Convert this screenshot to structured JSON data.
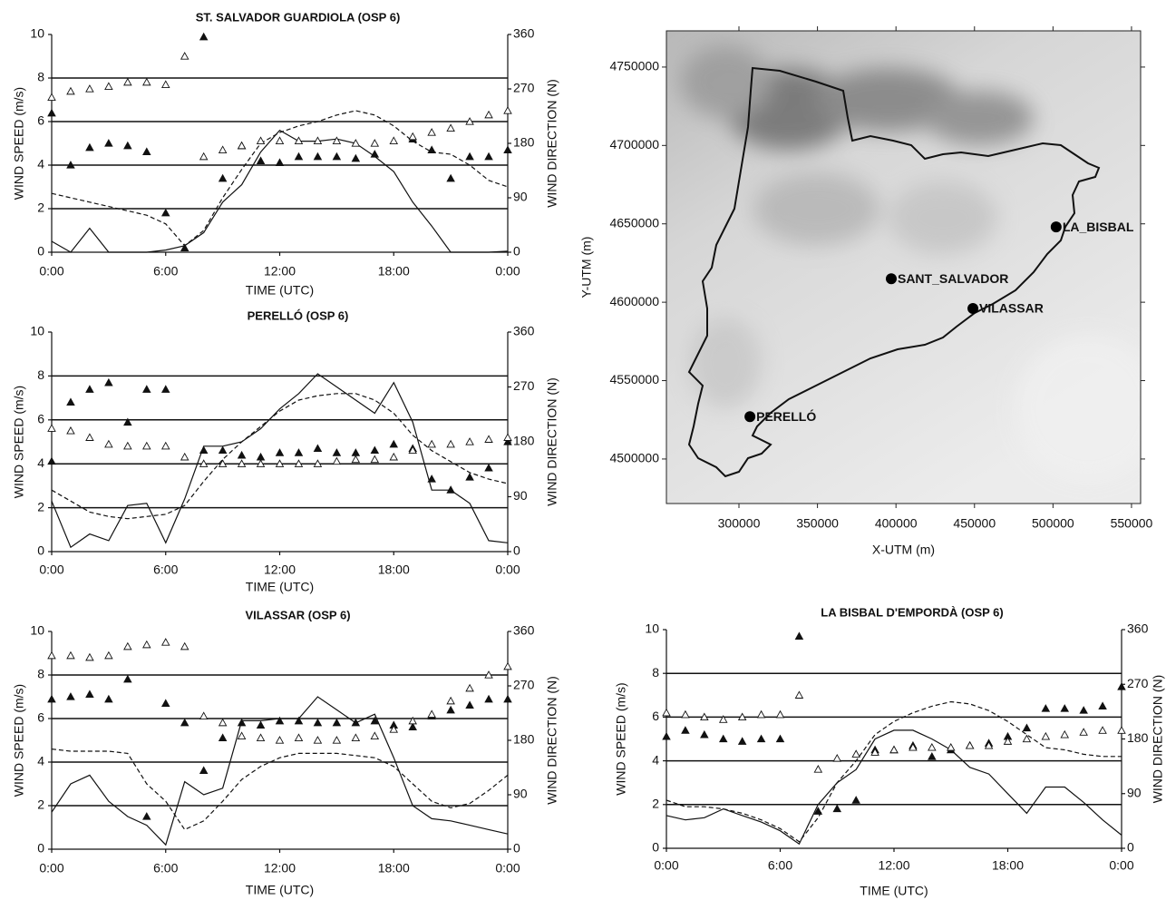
{
  "chart_data": [
    {
      "type": "line",
      "title": "ST. SALVADOR GUARDIOLA (OSP 6)",
      "xlabel": "TIME (UTC)",
      "ylabel": "WIND SPEED (m/s)",
      "y2label": "WIND DIRECTION (N)",
      "x": [
        0,
        1,
        2,
        3,
        4,
        5,
        6,
        7,
        8,
        9,
        10,
        11,
        12,
        13,
        14,
        15,
        16,
        17,
        18,
        19,
        20,
        21,
        22,
        23,
        24
      ],
      "xlim": [
        0,
        24
      ],
      "xticks": [
        {
          "value": 0,
          "label": "0:00"
        },
        {
          "value": 6,
          "label": "6:00"
        },
        {
          "value": 12,
          "label": "12:00"
        },
        {
          "value": 18,
          "label": "18:00"
        },
        {
          "value": 24,
          "label": "0:00"
        }
      ],
      "ylim": [
        0,
        10
      ],
      "yticks": [
        0,
        2,
        4,
        6,
        8,
        10
      ],
      "y2lim": [
        0,
        360
      ],
      "y2ticks": [
        0,
        90,
        180,
        270,
        360
      ],
      "grid": true,
      "series": [
        {
          "style": "solid",
          "color": "#111111",
          "axis": "y",
          "values": [
            0.5,
            0,
            1.1,
            0,
            0,
            0,
            0.1,
            0.3,
            0.9,
            2.3,
            3.1,
            4.6,
            5.6,
            5.1,
            5.1,
            5.2,
            5.0,
            4.4,
            3.7,
            2.3,
            1.2,
            0,
            0,
            0,
            0.05
          ]
        },
        {
          "style": "dashed",
          "color": "#111111",
          "axis": "y",
          "values": [
            2.7,
            2.5,
            2.3,
            2.1,
            1.9,
            1.7,
            1.3,
            0.3,
            1.0,
            2.5,
            3.8,
            5.0,
            5.5,
            5.8,
            6.0,
            6.3,
            6.5,
            6.3,
            5.8,
            5.1,
            4.6,
            4.5,
            4.0,
            3.3,
            3.0
          ]
        },
        {
          "style": "filled-triangle",
          "color": "#111111",
          "axis": "y2",
          "values": [
            230,
            144,
            173,
            180,
            176,
            166,
            65,
            7,
            356,
            122,
            176,
            151,
            148,
            158,
            158,
            158,
            155,
            162,
            null,
            187,
            169,
            122,
            158,
            158,
            169
          ]
        },
        {
          "style": "open-triangle",
          "color": "#111111",
          "axis": "y2",
          "values": [
            256,
            266,
            270,
            274,
            281,
            281,
            277,
            324,
            158,
            169,
            176,
            184,
            184,
            184,
            184,
            184,
            180,
            180,
            184,
            191,
            198,
            205,
            216,
            227,
            234
          ]
        }
      ]
    },
    {
      "type": "line",
      "title": "PERELLÓ (OSP 6)",
      "xlabel": "TIME (UTC)",
      "ylabel": "WIND SPEED (m/s)",
      "y2label": "WIND DIRECTION (N)",
      "x": [
        0,
        1,
        2,
        3,
        4,
        5,
        6,
        7,
        8,
        9,
        10,
        11,
        12,
        13,
        14,
        15,
        16,
        17,
        18,
        19,
        20,
        21,
        22,
        23,
        24
      ],
      "xlim": [
        0,
        24
      ],
      "xticks": [
        {
          "value": 0,
          "label": "0:00"
        },
        {
          "value": 6,
          "label": "6:00"
        },
        {
          "value": 12,
          "label": "12:00"
        },
        {
          "value": 18,
          "label": "18:00"
        },
        {
          "value": 24,
          "label": "0:00"
        }
      ],
      "ylim": [
        0,
        10
      ],
      "yticks": [
        0,
        2,
        4,
        6,
        8,
        10
      ],
      "y2lim": [
        0,
        360
      ],
      "y2ticks": [
        0,
        90,
        180,
        270,
        360
      ],
      "grid": true,
      "series": [
        {
          "style": "solid",
          "color": "#111111",
          "axis": "y",
          "values": [
            2.3,
            0.2,
            0.8,
            0.5,
            2.1,
            2.2,
            0.4,
            2.4,
            4.8,
            4.8,
            5.0,
            5.6,
            6.5,
            7.2,
            8.1,
            7.5,
            6.9,
            6.3,
            7.7,
            5.9,
            2.8,
            2.8,
            2.2,
            0.5,
            0.4
          ]
        },
        {
          "style": "dashed",
          "color": "#111111",
          "axis": "y",
          "values": [
            2.8,
            2.3,
            1.8,
            1.6,
            1.5,
            1.6,
            1.7,
            2.1,
            3.2,
            4.2,
            5.0,
            5.7,
            6.4,
            6.9,
            7.1,
            7.2,
            7.2,
            6.9,
            6.3,
            5.3,
            4.6,
            4.1,
            3.6,
            3.3,
            3.1
          ]
        },
        {
          "style": "filled-triangle",
          "color": "#111111",
          "axis": "y2",
          "values": [
            148,
            245,
            266,
            277,
            212,
            266,
            266,
            null,
            166,
            166,
            158,
            155,
            162,
            162,
            169,
            162,
            162,
            166,
            176,
            169,
            119,
            101,
            122,
            137,
            180
          ]
        },
        {
          "style": "open-triangle",
          "color": "#111111",
          "axis": "y2",
          "values": [
            202,
            198,
            187,
            176,
            173,
            173,
            173,
            155,
            144,
            144,
            144,
            144,
            144,
            144,
            144,
            148,
            151,
            151,
            155,
            166,
            176,
            176,
            180,
            184,
            187
          ]
        }
      ]
    },
    {
      "type": "line",
      "title": "VILASSAR (OSP 6)",
      "xlabel": "TIME (UTC)",
      "ylabel": "WIND SPEED (m/s)",
      "y2label": "WIND DIRECTION (N)",
      "x": [
        0,
        1,
        2,
        3,
        4,
        5,
        6,
        7,
        8,
        9,
        10,
        11,
        12,
        13,
        14,
        15,
        16,
        17,
        18,
        19,
        20,
        21,
        22,
        23,
        24
      ],
      "xlim": [
        0,
        24
      ],
      "xticks": [
        {
          "value": 0,
          "label": "0:00"
        },
        {
          "value": 6,
          "label": "6:00"
        },
        {
          "value": 12,
          "label": "12:00"
        },
        {
          "value": 18,
          "label": "18:00"
        },
        {
          "value": 24,
          "label": "0:00"
        }
      ],
      "ylim": [
        0,
        10
      ],
      "yticks": [
        0,
        2,
        4,
        6,
        8,
        10
      ],
      "y2lim": [
        0,
        360
      ],
      "y2ticks": [
        0,
        90,
        180,
        270,
        360
      ],
      "grid": true,
      "series": [
        {
          "style": "solid",
          "color": "#111111",
          "axis": "y",
          "values": [
            1.7,
            3.0,
            3.4,
            2.2,
            1.5,
            1.1,
            0.2,
            3.1,
            2.5,
            2.8,
            5.9,
            5.9,
            6.0,
            6.0,
            7.0,
            6.4,
            5.8,
            6.2,
            4.2,
            2.0,
            1.4,
            1.3,
            1.1,
            0.9,
            0.7
          ]
        },
        {
          "style": "dashed",
          "color": "#111111",
          "axis": "y",
          "values": [
            4.6,
            4.5,
            4.5,
            4.5,
            4.4,
            3.0,
            2.2,
            0.9,
            1.3,
            2.2,
            3.2,
            3.8,
            4.2,
            4.4,
            4.4,
            4.4,
            4.3,
            4.2,
            3.8,
            3.0,
            2.2,
            1.9,
            2.1,
            2.7,
            3.4
          ]
        },
        {
          "style": "filled-triangle",
          "color": "#111111",
          "axis": "y2",
          "values": [
            248,
            252,
            256,
            248,
            281,
            54,
            241,
            209,
            130,
            184,
            209,
            205,
            212,
            212,
            209,
            209,
            209,
            212,
            205,
            202,
            220,
            230,
            238,
            248,
            248
          ]
        },
        {
          "style": "open-triangle",
          "color": "#111111",
          "axis": "y2",
          "values": [
            320,
            320,
            317,
            320,
            335,
            338,
            342,
            335,
            220,
            209,
            187,
            184,
            180,
            184,
            180,
            180,
            184,
            187,
            198,
            212,
            223,
            245,
            266,
            288,
            302
          ]
        }
      ]
    },
    {
      "type": "line",
      "title": "LA BISBAL D'EMPORDÀ (OSP 6)",
      "xlabel": "TIME (UTC)",
      "ylabel": "WIND SPEED (m/s)",
      "y2label": "WIND DIRECTION (N)",
      "x": [
        0,
        1,
        2,
        3,
        4,
        5,
        6,
        7,
        8,
        9,
        10,
        11,
        12,
        13,
        14,
        15,
        16,
        17,
        18,
        19,
        20,
        21,
        22,
        23,
        24
      ],
      "xlim": [
        0,
        24
      ],
      "xticks": [
        {
          "value": 0,
          "label": "0:00"
        },
        {
          "value": 6,
          "label": "6:00"
        },
        {
          "value": 12,
          "label": "12:00"
        },
        {
          "value": 18,
          "label": "18:00"
        },
        {
          "value": 24,
          "label": "0:00"
        }
      ],
      "ylim": [
        0,
        10
      ],
      "yticks": [
        0,
        2,
        4,
        6,
        8,
        10
      ],
      "y2lim": [
        0,
        360
      ],
      "y2ticks": [
        0,
        90,
        180,
        270,
        360
      ],
      "grid": true,
      "series": [
        {
          "style": "solid",
          "color": "#111111",
          "axis": "y",
          "values": [
            1.5,
            1.3,
            1.4,
            1.8,
            1.5,
            1.2,
            0.8,
            0.2,
            2.0,
            3.0,
            3.6,
            5.0,
            5.4,
            5.4,
            5.0,
            4.5,
            3.7,
            3.4,
            2.5,
            1.6,
            2.8,
            2.8,
            2.1,
            1.3,
            0.6
          ]
        },
        {
          "style": "dashed",
          "color": "#111111",
          "axis": "y",
          "values": [
            2.2,
            1.9,
            1.9,
            1.8,
            1.6,
            1.3,
            0.9,
            0.3,
            1.4,
            3.0,
            4.0,
            5.2,
            5.8,
            6.2,
            6.5,
            6.7,
            6.6,
            6.3,
            5.8,
            5.2,
            4.6,
            4.5,
            4.3,
            4.2,
            4.2
          ]
        },
        {
          "style": "filled-triangle",
          "color": "#111111",
          "axis": "y2",
          "values": [
            184,
            194,
            187,
            180,
            176,
            180,
            180,
            349,
            61,
            65,
            79,
            162,
            162,
            169,
            151,
            162,
            169,
            173,
            184,
            198,
            230,
            230,
            227,
            234,
            266
          ]
        },
        {
          "style": "open-triangle",
          "color": "#111111",
          "axis": "y2",
          "values": [
            223,
            220,
            216,
            212,
            216,
            220,
            220,
            252,
            130,
            148,
            155,
            158,
            162,
            166,
            166,
            166,
            169,
            169,
            176,
            180,
            184,
            187,
            191,
            194,
            194
          ]
        }
      ]
    },
    {
      "type": "map",
      "xlabel": "X-UTM (m)",
      "ylabel": "Y-UTM (m)",
      "xlim": [
        253800,
        555800
      ],
      "xticks": [
        300000,
        350000,
        400000,
        450000,
        500000,
        550000
      ],
      "ylim": [
        4471600,
        4773100
      ],
      "yticks": [
        4500000,
        4550000,
        4600000,
        4650000,
        4700000,
        4750000
      ],
      "points": [
        {
          "label": "LA_BISBAL",
          "x": 502000,
          "y": 4648000
        },
        {
          "label": "SANT_SALVADOR",
          "x": 397000,
          "y": 4615000
        },
        {
          "label": "VILASSAR",
          "x": 449000,
          "y": 4596000
        },
        {
          "label": "PERELLÓ",
          "x": 307000,
          "y": 4527000
        }
      ]
    }
  ]
}
